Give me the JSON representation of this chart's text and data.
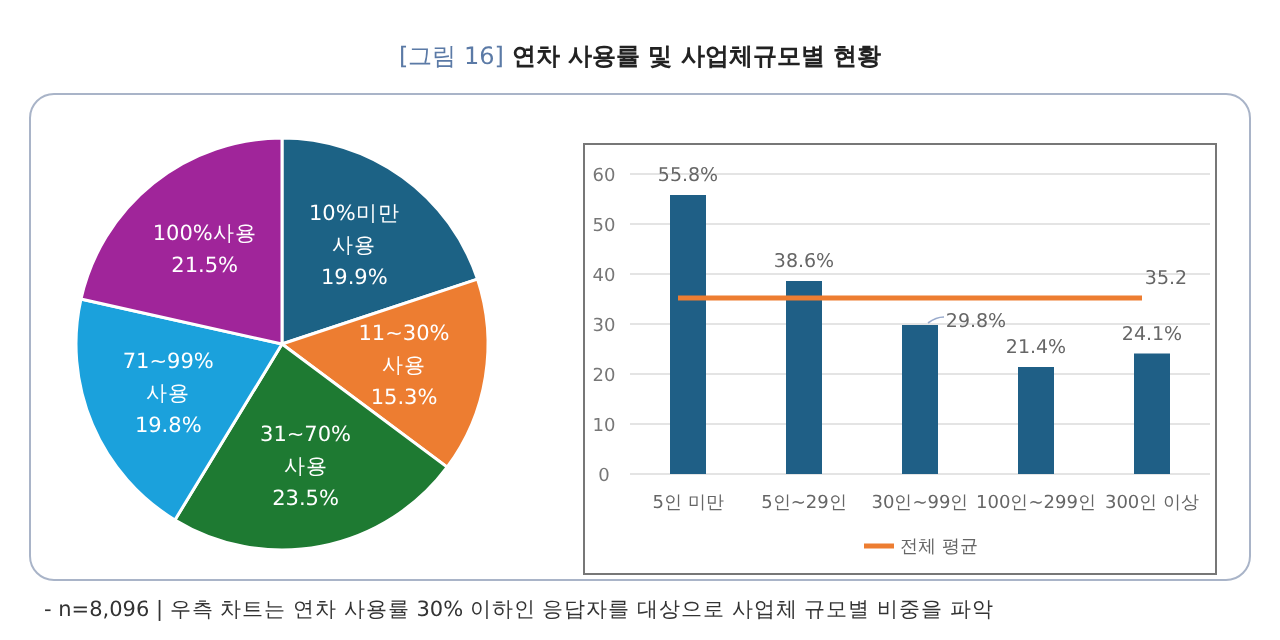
{
  "chart_data": [
    {
      "type": "pie",
      "title": "[그림 16] 연차 사용률 및 사업체규모별 현황",
      "categories": [
        "10%미만\n사용",
        "11~30%\n사용",
        "31~70%\n사용",
        "71~99%\n사용",
        "100%사용"
      ],
      "values": [
        19.9,
        15.3,
        23.5,
        19.8,
        21.5
      ],
      "colors": [
        "#1c6285",
        "#ed7d31",
        "#1e7a32",
        "#1ba1dc",
        "#a0259a"
      ],
      "value_labels": [
        "19.9%",
        "15.3%",
        "23.5%",
        "19.8%",
        "21.5%"
      ]
    },
    {
      "type": "bar",
      "categories": [
        "5인 미만",
        "5인~29인",
        "30인~99인",
        "100인~299인",
        "300인 이상"
      ],
      "values": [
        55.8,
        38.6,
        29.8,
        21.4,
        24.1
      ],
      "value_labels": [
        "55.8%",
        "38.6%",
        "29.8%",
        "21.4%",
        "24.1%"
      ],
      "color": "#1f5f86",
      "ylim": [
        0,
        60
      ],
      "yticks": [
        0,
        10,
        20,
        30,
        40,
        50,
        60
      ],
      "grid": "y",
      "ref_lines": [
        {
          "axis": "y",
          "value": 35.2,
          "label": "전체 평균",
          "color": "#ed7d31"
        }
      ],
      "legend": "bottom",
      "annotations": [
        {
          "text": "35.2",
          "x": "300인 이상",
          "y": 35.2
        },
        "- n=8,096 | 우측 차트는 연차 사용률 30% 이하인 응답자를 대상으로 사업체 규모별 비중을 파악"
      ]
    }
  ]
}
